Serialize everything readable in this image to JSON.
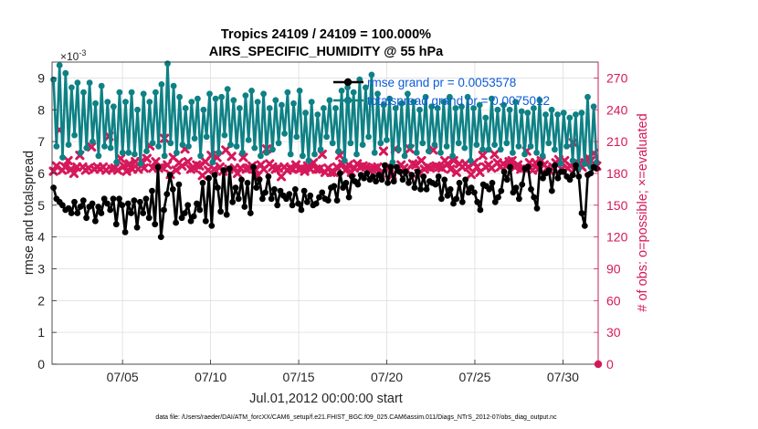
{
  "chart_data": {
    "type": "line",
    "title": "Tropics 24109 / 24109 = 100.000%",
    "subtitle": "AIRS_SPECIFIC_HUMIDITY @ 55 hPa",
    "xlabel": "Jul.01,2012 00:00:00 start",
    "ylabel": "rmse and totalspread",
    "ylabel_right": "# of obs: o=possible; ×=evaluated",
    "y_exponent_label": "×10",
    "y_exponent_value": "-3",
    "footer": "data file: /Users/raeder/DAI/ATM_forcXX/CAM6_setup/f.e21.FHIST_BGC.f09_025.CAM6assim.011/Diags_NTrS_2012-07/obs_diag_output.nc",
    "x_ticks": [
      {
        "value": 5,
        "label": "07/05"
      },
      {
        "value": 10,
        "label": "07/10"
      },
      {
        "value": 15,
        "label": "07/15"
      },
      {
        "value": 20,
        "label": "07/20"
      },
      {
        "value": 25,
        "label": "07/25"
      },
      {
        "value": 30,
        "label": "07/30"
      }
    ],
    "y_ticks": [
      "0",
      "1",
      "2",
      "3",
      "4",
      "5",
      "6",
      "7",
      "8",
      "9"
    ],
    "y2_ticks": [
      "0",
      "30",
      "60",
      "90",
      "120",
      "150",
      "180",
      "210",
      "240",
      "270"
    ],
    "xlim": [
      1,
      32
    ],
    "ylim": [
      0,
      9.5
    ],
    "y2lim": [
      0,
      285
    ],
    "grid": true,
    "legend_position": "top-right",
    "colors": {
      "rmse": "#000000",
      "spread": "#0e8185",
      "obs": "#d6185a",
      "legend_text": "#0b5bd8",
      "right_axis": "#d6185a"
    },
    "series": [
      {
        "name": "rmse grand pr = 0.0053578",
        "color": "#000000",
        "values": [
          5.55,
          5.2,
          5.1,
          5.0,
          4.85,
          4.9,
          4.75,
          5.1,
          4.75,
          4.95,
          5.15,
          4.6,
          4.95,
          5.05,
          4.5,
          4.95,
          4.75,
          5.2,
          5.05,
          4.85,
          5.2,
          4.4,
          5.2,
          5.0,
          4.15,
          5.05,
          4.75,
          5.15,
          4.3,
          5.1,
          4.75,
          5.2,
          4.6,
          5.45,
          4.4,
          6.2,
          4.0,
          4.85,
          5.35,
          5.95,
          5.5,
          4.45,
          5.65,
          4.6,
          4.75,
          5.0,
          4.5,
          4.65,
          5.05,
          4.85,
          5.7,
          4.5,
          5.85,
          4.35,
          5.95,
          5.55,
          4.8,
          6.1,
          4.7,
          6.15,
          5.1,
          5.55,
          5.2,
          5.8,
          4.95,
          5.7,
          4.75,
          6.2,
          5.55,
          5.8,
          5.2,
          5.4,
          5.9,
          5.2,
          5.5,
          5.0,
          5.45,
          5.3,
          5.2,
          5.35,
          5.0,
          5.5,
          5.05,
          4.85,
          5.45,
          5.1,
          5.3,
          5.0,
          5.05,
          5.25,
          5.4,
          5.2,
          5.15,
          5.55,
          5.6,
          5.15,
          6.0,
          5.55,
          5.7,
          5.25,
          5.9,
          5.75,
          5.65,
          5.95,
          5.85,
          6.0,
          5.8,
          5.9,
          5.75,
          5.95,
          5.8,
          6.25,
          5.7,
          6.2,
          5.75,
          6.2,
          6.05,
          5.8,
          6.05,
          5.7,
          5.95,
          5.55,
          6.05,
          5.5,
          5.9,
          5.5,
          5.75,
          5.7,
          5.65,
          5.9,
          5.2,
          5.8,
          5.3,
          5.5,
          5.05,
          5.2,
          5.7,
          5.1,
          5.8,
          5.4,
          5.55,
          5.4,
          5.1,
          4.85,
          5.65,
          5.6,
          5.5,
          5.7,
          5.1,
          5.25,
          5.45,
          6.05,
          5.8,
          6.2,
          5.4,
          5.55,
          5.2,
          5.65,
          6.15,
          6.2,
          5.5,
          5.25,
          4.9,
          6.3,
          5.85,
          6.0,
          6.1,
          5.45,
          6.25,
          5.85,
          6.05,
          6.05,
          5.9,
          5.8,
          5.95,
          6.25,
          5.9,
          4.75,
          4.35,
          5.95,
          6.0,
          6.2,
          6.15
        ]
      },
      {
        "name": "totalspread grand pr = 0.0075012",
        "color": "#0e8185",
        "values": [
          8.95,
          6.85,
          9.4,
          6.5,
          9.15,
          6.9,
          8.7,
          7.2,
          8.85,
          6.65,
          8.55,
          6.8,
          8.85,
          7.0,
          8.2,
          6.55,
          8.75,
          6.85,
          8.25,
          6.8,
          8.1,
          6.35,
          8.55,
          6.65,
          8.25,
          6.65,
          8.55,
          6.6,
          8.0,
          6.3,
          8.5,
          6.7,
          8.25,
          6.95,
          8.55,
          6.85,
          8.8,
          6.55,
          9.45,
          6.95,
          8.75,
          6.65,
          8.4,
          6.9,
          8.05,
          6.85,
          8.25,
          7.1,
          8.35,
          6.55,
          8.0,
          7.15,
          8.5,
          6.35,
          8.35,
          6.65,
          8.4,
          7.2,
          8.65,
          6.9,
          8.3,
          6.85,
          8.05,
          6.65,
          8.45,
          7.05,
          8.6,
          6.8,
          8.25,
          6.55,
          8.5,
          6.65,
          8.05,
          6.75,
          8.3,
          6.95,
          8.15,
          7.25,
          8.55,
          6.6,
          8.2,
          7.15,
          8.6,
          6.55,
          7.9,
          6.4,
          8.25,
          6.6,
          7.85,
          6.75,
          8.05,
          7.15,
          8.3,
          6.95,
          8.05,
          6.7,
          8.6,
          6.4,
          8.7,
          6.95,
          8.55,
          6.6,
          8.95,
          6.9,
          8.7,
          7.15,
          9.1,
          6.65,
          8.5,
          6.95,
          8.15,
          7.05,
          8.35,
          6.35,
          8.05,
          6.75,
          8.2,
          6.55,
          8.5,
          6.85,
          8.25,
          6.65,
          8.0,
          6.95,
          8.4,
          6.7,
          8.1,
          6.9,
          8.05,
          6.65,
          8.25,
          6.85,
          8.4,
          6.55,
          8.05,
          6.95,
          8.1,
          6.8,
          8.4,
          6.4,
          8.05,
          6.9,
          8.15,
          6.75,
          7.75,
          6.75,
          8.35,
          6.9,
          8.0,
          6.75,
          8.15,
          6.95,
          8.0,
          6.65,
          8.25,
          6.85,
          7.95,
          6.6,
          7.9,
          6.85,
          8.05,
          6.65,
          8.3,
          6.55,
          7.85,
          6.95,
          8.0,
          6.75,
          7.85,
          6.3,
          7.9,
          6.85,
          7.75,
          6.4,
          7.85,
          6.15,
          7.9,
          6.3,
          8.4,
          6.2,
          8.1,
          6.35
        ]
      },
      {
        "name": "# of obs evaluated",
        "color": "#d6185a",
        "axis": "right",
        "values": [
          182,
          187,
          221,
          183,
          186,
          192,
          184,
          180,
          186,
          197,
          186,
          183,
          185,
          205,
          184,
          186,
          184,
          186,
          183,
          215,
          184,
          185,
          183,
          194,
          187,
          182,
          189,
          184,
          191,
          184,
          191,
          185,
          194,
          206,
          185,
          191,
          185,
          186,
          213,
          188,
          179,
          195,
          183,
          190,
          187,
          203,
          191,
          184,
          185,
          188,
          187,
          178,
          191,
          183,
          197,
          184,
          195,
          186,
          182,
          202,
          184,
          196,
          185,
          180,
          185,
          195,
          184,
          185,
          187,
          184,
          178,
          188,
          184,
          203,
          189,
          186,
          184,
          185,
          177,
          186,
          183,
          185,
          184,
          188,
          184,
          185,
          182,
          187,
          184,
          190,
          184,
          184,
          198,
          181,
          185,
          181,
          181,
          186,
          197,
          189,
          183,
          188,
          181,
          185,
          189,
          186,
          187,
          186,
          183,
          184,
          185,
          186,
          180,
          201,
          185,
          186,
          178,
          203,
          184,
          188,
          185,
          183,
          203,
          189,
          188,
          180,
          192,
          184,
          186,
          185,
          202,
          187,
          186,
          185,
          192,
          189,
          184,
          192,
          181,
          189,
          186,
          189,
          186,
          179,
          190,
          186,
          181,
          197,
          186,
          188,
          185,
          198,
          190,
          186,
          189,
          187,
          191,
          192,
          186,
          188,
          184,
          185,
          201,
          190,
          183,
          190,
          184,
          192,
          188,
          185,
          182,
          186,
          190,
          193,
          184,
          192,
          185,
          187,
          209,
          185,
          189,
          186,
          190,
          195,
          192,
          199,
          187
        ]
      }
    ]
  }
}
